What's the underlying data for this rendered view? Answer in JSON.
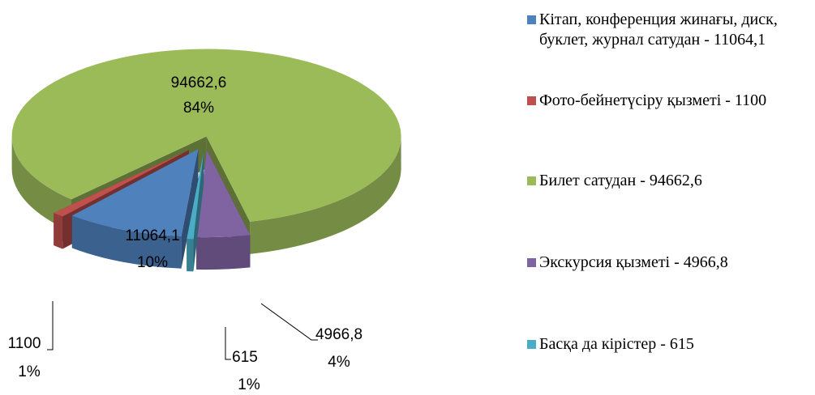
{
  "chart_data": {
    "type": "pie3d",
    "categories": [
      "Кітап, конференция жинағы, диск, буклет, журнал сатудан - 11064,1",
      "Фото-бейнетүсіру қызметі - 1100",
      "Билет сатудан - 94662,6",
      "Экскурсия қызметі - 4966,8",
      "Басқа да кірістер - 615"
    ],
    "values": [
      11064.1,
      1100,
      94662.6,
      4966.8,
      615
    ],
    "value_labels": [
      "11064,1",
      "1100",
      "94662,6",
      "4966,8",
      "615"
    ],
    "percent_labels": [
      "10%",
      "1%",
      "84%",
      "4%",
      "1%"
    ],
    "colors": [
      "#4f81bd",
      "#c0504d",
      "#9bbb59",
      "#8064a2",
      "#4bacc6"
    ],
    "legend": "right"
  }
}
